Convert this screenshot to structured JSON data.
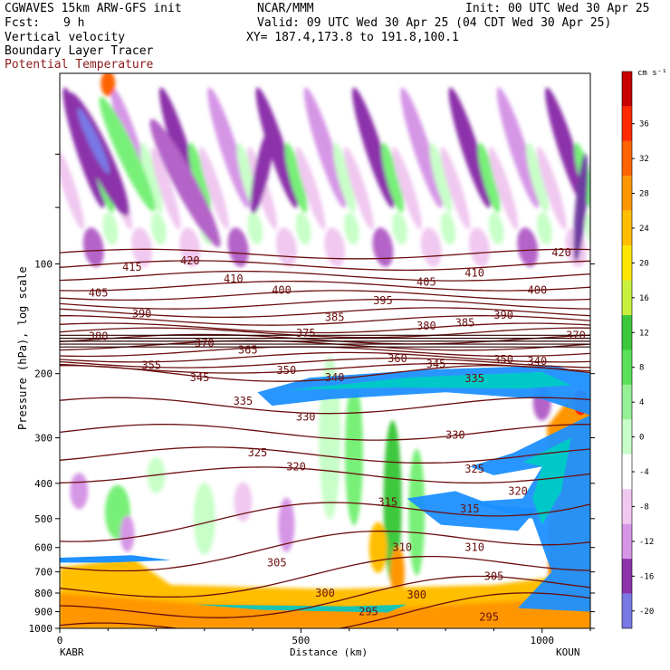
{
  "header": {
    "model": "CGWAVES 15km ARW-GFS init",
    "center": "NCAR/MMM",
    "init": "Init: 00 UTC Wed 30 Apr 25",
    "fcst_label": "Fcst:",
    "fcst_value": "9 h",
    "valid": "Valid: 09 UTC Wed 30 Apr 25 (04 CDT Wed 30 Apr 25)",
    "field1": "Vertical velocity",
    "field2": "Boundary Layer Tracer",
    "field3": "Potential Temperature",
    "xy": "XY= 187.4,173.8 to 191.8,100.1"
  },
  "colors": {
    "theta_contour": "#6b0f0f",
    "tracer_outer": "#1e90ff",
    "tracer_inner": "#00c8c8",
    "updraft_scale": [
      "#c8ffc8",
      "#78f078",
      "#3cc83c",
      "#c8f03c",
      "#ffe600",
      "#ffbe00",
      "#ff9600",
      "#ff6400",
      "#ff2800",
      "#c80000"
    ],
    "downdraft_scale": [
      "#f0c8f0",
      "#d696e6",
      "#b464c8",
      "#8c32aa",
      "#6e3ca0",
      "#7878e6",
      "#8c8cf0"
    ]
  },
  "chart_data": {
    "type": "heatmap",
    "title": "Vertical velocity",
    "xlabel": "Distance (km)",
    "ylabel": "Pressure (hPa), log scale",
    "xlim": [
      0,
      1100
    ],
    "ylim": [
      1000,
      30
    ],
    "y_scale": "log",
    "x_ticks": [
      "0",
      "500",
      "1000"
    ],
    "x_tick_values": [
      0,
      500,
      1000
    ],
    "x_endpoints": {
      "left": "KABR",
      "right": "KOUN"
    },
    "y_ticks": [
      "100",
      "200",
      "300",
      "400",
      "500",
      "600",
      "700",
      "800",
      "900",
      "1000"
    ],
    "y_tick_values": [
      100,
      200,
      300,
      400,
      500,
      600,
      700,
      800,
      900,
      1000
    ],
    "colorbar": {
      "unit": "cm s⁻¹",
      "labels": [
        "36",
        "32",
        "28",
        "24",
        "20",
        "16",
        "12",
        "8",
        "4",
        "0",
        "-4",
        "-8",
        "-12",
        "-16",
        "-20"
      ],
      "label_values": [
        36,
        32,
        28,
        24,
        20,
        16,
        12,
        8,
        4,
        0,
        -4,
        -8,
        -12,
        -16,
        -20
      ],
      "range": [
        -22,
        42
      ]
    },
    "theta_contour_labels": [
      {
        "text": "415",
        "x": 150,
        "p": 102
      },
      {
        "text": "420",
        "x": 270,
        "p": 98
      },
      {
        "text": "405",
        "x": 80,
        "p": 120
      },
      {
        "text": "410",
        "x": 360,
        "p": 110
      },
      {
        "text": "400",
        "x": 460,
        "p": 118
      },
      {
        "text": "390",
        "x": 170,
        "p": 137
      },
      {
        "text": "385",
        "x": 570,
        "p": 140
      },
      {
        "text": "395",
        "x": 670,
        "p": 126
      },
      {
        "text": "405",
        "x": 760,
        "p": 112
      },
      {
        "text": "410",
        "x": 860,
        "p": 106
      },
      {
        "text": "420",
        "x": 1040,
        "p": 93
      },
      {
        "text": "400",
        "x": 990,
        "p": 118
      },
      {
        "text": "390",
        "x": 920,
        "p": 138
      },
      {
        "text": "385",
        "x": 840,
        "p": 145
      },
      {
        "text": "380",
        "x": 760,
        "p": 148
      },
      {
        "text": "380",
        "x": 80,
        "p": 158
      },
      {
        "text": "375",
        "x": 510,
        "p": 155
      },
      {
        "text": "370",
        "x": 300,
        "p": 165
      },
      {
        "text": "365",
        "x": 390,
        "p": 172
      },
      {
        "text": "370",
        "x": 1070,
        "p": 157
      },
      {
        "text": "360",
        "x": 700,
        "p": 182
      },
      {
        "text": "355",
        "x": 190,
        "p": 190
      },
      {
        "text": "345",
        "x": 290,
        "p": 205
      },
      {
        "text": "350",
        "x": 470,
        "p": 196
      },
      {
        "text": "345",
        "x": 780,
        "p": 188
      },
      {
        "text": "340",
        "x": 570,
        "p": 205
      },
      {
        "text": "335",
        "x": 860,
        "p": 206
      },
      {
        "text": "350",
        "x": 920,
        "p": 183
      },
      {
        "text": "340",
        "x": 990,
        "p": 185
      },
      {
        "text": "335",
        "x": 380,
        "p": 238
      },
      {
        "text": "330",
        "x": 510,
        "p": 263
      },
      {
        "text": "325",
        "x": 410,
        "p": 330
      },
      {
        "text": "320",
        "x": 490,
        "p": 360
      },
      {
        "text": "330",
        "x": 820,
        "p": 295
      },
      {
        "text": "325",
        "x": 860,
        "p": 365
      },
      {
        "text": "320",
        "x": 950,
        "p": 420
      },
      {
        "text": "315",
        "x": 680,
        "p": 450
      },
      {
        "text": "315",
        "x": 850,
        "p": 470
      },
      {
        "text": "310",
        "x": 710,
        "p": 600
      },
      {
        "text": "310",
        "x": 860,
        "p": 600
      },
      {
        "text": "305",
        "x": 450,
        "p": 660
      },
      {
        "text": "305",
        "x": 900,
        "p": 720
      },
      {
        "text": "300",
        "x": 550,
        "p": 800
      },
      {
        "text": "300",
        "x": 740,
        "p": 810
      },
      {
        "text": "295",
        "x": 640,
        "p": 900
      },
      {
        "text": "295",
        "x": 890,
        "p": 930
      }
    ],
    "theta_levels": [
      295,
      300,
      305,
      310,
      315,
      320,
      325,
      330,
      335,
      340,
      345,
      350,
      355,
      360,
      365,
      370,
      375,
      380,
      385,
      390,
      395,
      400,
      405,
      410,
      415,
      420
    ]
  }
}
